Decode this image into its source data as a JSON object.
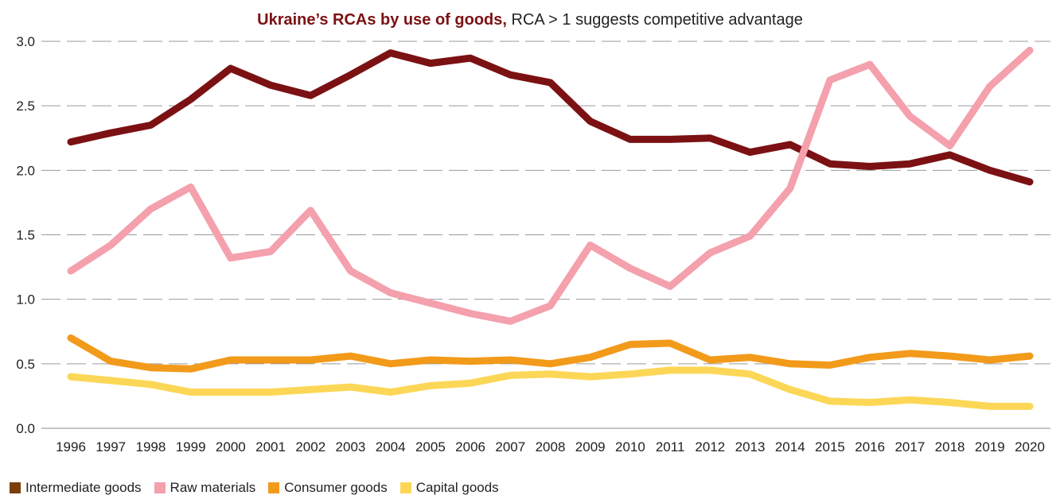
{
  "chart_data": {
    "type": "line",
    "title_bold": "Ukraine’s RCAs by use of goods,",
    "title_rest": " RCA > 1 suggests competitive advantage",
    "xlabel": "",
    "ylabel": "",
    "ylim": [
      0,
      3.0
    ],
    "yticks": [
      "0.0",
      "0.5",
      "1.0",
      "1.5",
      "2.0",
      "2.5",
      "3.0"
    ],
    "grid": true,
    "legend_position": "bottom-left",
    "categories": [
      "1996",
      "1997",
      "1998",
      "1999",
      "2000",
      "2001",
      "2002",
      "2003",
      "2004",
      "2005",
      "2006",
      "2007",
      "2008",
      "2009",
      "2010",
      "2011",
      "2012",
      "2013",
      "2014",
      "2015",
      "2016",
      "2017",
      "2018",
      "2019",
      "2020"
    ],
    "series": [
      {
        "name": "Intermediate goods",
        "color": "#7b1113",
        "legend_color": "#7b3f0a",
        "values": [
          2.22,
          2.29,
          2.35,
          2.55,
          2.79,
          2.66,
          2.58,
          2.74,
          2.91,
          2.83,
          2.87,
          2.74,
          2.68,
          2.38,
          2.24,
          2.24,
          2.25,
          2.14,
          2.2,
          2.05,
          2.03,
          2.05,
          2.12,
          2.0,
          1.91
        ]
      },
      {
        "name": "Raw materials",
        "color": "#f4a0ad",
        "legend_color": "#f4a0ad",
        "values": [
          1.22,
          1.42,
          1.7,
          1.87,
          1.32,
          1.37,
          1.69,
          1.22,
          1.05,
          0.97,
          0.89,
          0.83,
          0.95,
          1.42,
          1.24,
          1.1,
          1.36,
          1.49,
          1.86,
          2.7,
          2.82,
          2.42,
          2.19,
          2.65,
          2.93
        ]
      },
      {
        "name": "Consumer goods",
        "color": "#f29a1a",
        "legend_color": "#f29a1a",
        "values": [
          0.7,
          0.52,
          0.47,
          0.46,
          0.53,
          0.53,
          0.53,
          0.56,
          0.5,
          0.53,
          0.52,
          0.53,
          0.5,
          0.55,
          0.65,
          0.66,
          0.53,
          0.55,
          0.5,
          0.49,
          0.55,
          0.58,
          0.56,
          0.53,
          0.56
        ]
      },
      {
        "name": "Capital goods",
        "color": "#fcd757",
        "legend_color": "#fcd757",
        "values": [
          0.4,
          0.37,
          0.34,
          0.28,
          0.28,
          0.28,
          0.3,
          0.32,
          0.28,
          0.33,
          0.35,
          0.41,
          0.42,
          0.4,
          0.42,
          0.45,
          0.45,
          0.42,
          0.3,
          0.21,
          0.2,
          0.22,
          0.2,
          0.17,
          0.17
        ]
      }
    ]
  }
}
